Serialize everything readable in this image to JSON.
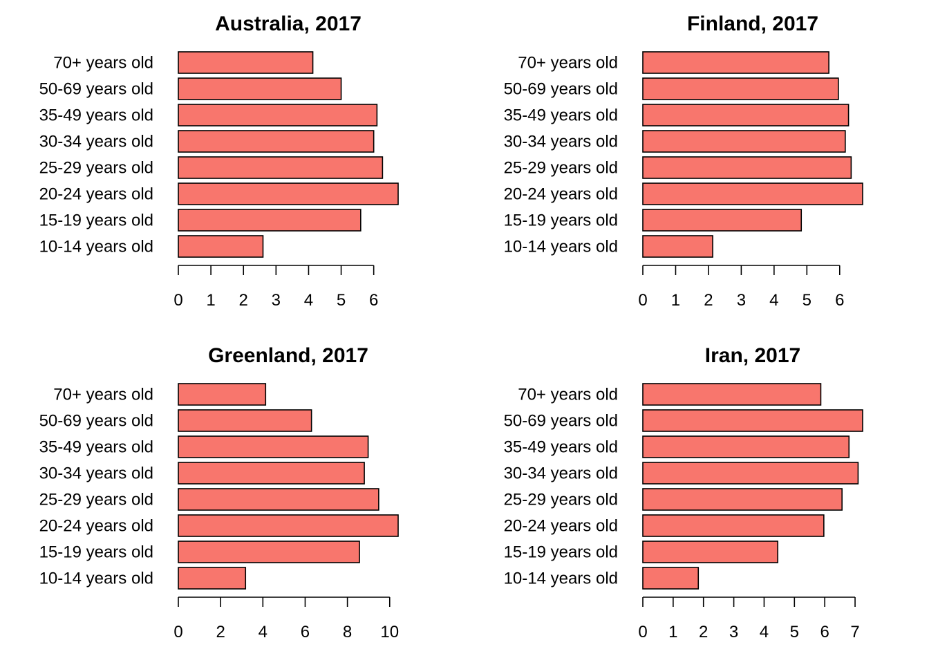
{
  "chart_data": [
    {
      "type": "bar",
      "orientation": "horizontal",
      "title": "Australia, 2017",
      "categories": [
        "10-14 years old",
        "15-19 years old",
        "20-24 years old",
        "25-29 years old",
        "30-34 years old",
        "35-49 years old",
        "50-69 years old",
        "70+ years old"
      ],
      "values": [
        2.6,
        5.6,
        6.75,
        6.27,
        6.0,
        6.1,
        5.0,
        4.13
      ],
      "xticks": [
        0,
        1,
        2,
        3,
        4,
        5,
        6
      ],
      "xlim": [
        0,
        6.75
      ],
      "bar_color": "#F8766D"
    },
    {
      "type": "bar",
      "orientation": "horizontal",
      "title": "Finland, 2017",
      "categories": [
        "10-14 years old",
        "15-19 years old",
        "20-24 years old",
        "25-29 years old",
        "30-34 years old",
        "35-49 years old",
        "50-69 years old",
        "70+ years old"
      ],
      "values": [
        2.13,
        4.83,
        6.7,
        6.35,
        6.17,
        6.27,
        5.96,
        5.67
      ],
      "xticks": [
        0,
        1,
        2,
        3,
        4,
        5,
        6
      ],
      "xlim": [
        0,
        6.7
      ],
      "bar_color": "#F8766D"
    },
    {
      "type": "bar",
      "orientation": "horizontal",
      "title": "Greenland, 2017",
      "categories": [
        "10-14 years old",
        "15-19 years old",
        "20-24 years old",
        "25-29 years old",
        "30-34 years old",
        "35-49 years old",
        "50-69 years old",
        "70+ years old"
      ],
      "values": [
        3.18,
        8.57,
        10.4,
        9.48,
        8.8,
        8.98,
        6.3,
        4.13
      ],
      "xticks": [
        0,
        2,
        4,
        6,
        8,
        10
      ],
      "xlim": [
        0,
        10.4
      ],
      "bar_color": "#F8766D"
    },
    {
      "type": "bar",
      "orientation": "horizontal",
      "title": "Iran, 2017",
      "categories": [
        "10-14 years old",
        "15-19 years old",
        "20-24 years old",
        "25-29 years old",
        "30-34 years old",
        "35-49 years old",
        "50-69 years old",
        "70+ years old"
      ],
      "values": [
        1.83,
        4.45,
        5.97,
        6.57,
        7.1,
        6.8,
        7.25,
        5.87
      ],
      "xticks": [
        0,
        1,
        2,
        3,
        4,
        5,
        6,
        7
      ],
      "xlim": [
        0,
        7.25
      ],
      "bar_color": "#F8766D"
    }
  ]
}
